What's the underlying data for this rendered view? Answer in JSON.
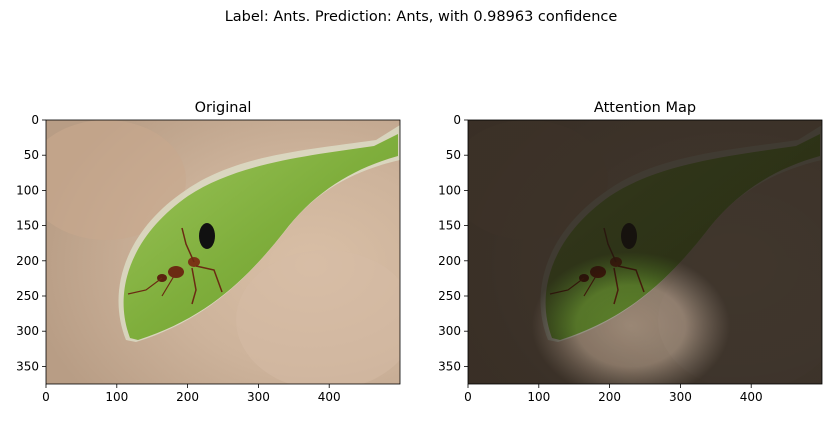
{
  "figure": {
    "suptitle": "Label: Ants. Prediction: Ants, with 0.98963 confidence"
  },
  "panels": [
    {
      "title": "Original",
      "x_ticks": [
        "0",
        "100",
        "200",
        "300",
        "400"
      ],
      "y_ticks": [
        "0",
        "50",
        "100",
        "150",
        "200",
        "250",
        "300",
        "350"
      ]
    },
    {
      "title": "Attention Map",
      "x_ticks": [
        "0",
        "100",
        "200",
        "300",
        "400"
      ],
      "y_ticks": [
        "0",
        "50",
        "100",
        "150",
        "200",
        "250",
        "300",
        "350"
      ]
    }
  ],
  "image_description": {
    "subject": "ant on underside of green leaf",
    "background_color": "#c9ad94",
    "leaf_color": "#7fae3c",
    "ant_color": "#6b2a12",
    "attention_dim_color": "#2a2118"
  }
}
